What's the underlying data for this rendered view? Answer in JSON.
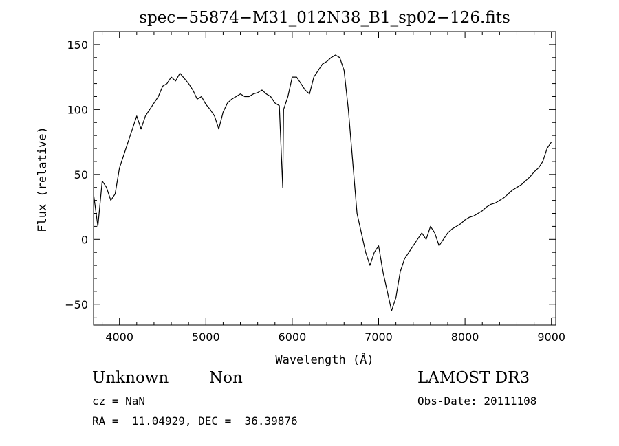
{
  "chart_data": {
    "type": "line",
    "title": "spec−55874−M31_012N38_B1_sp02−126.fits",
    "xlabel": "Wavelength (Å)",
    "ylabel": "Flux (relative)",
    "xlim": [
      3700,
      9050
    ],
    "ylim": [
      -66,
      160
    ],
    "x_ticks": [
      4000,
      5000,
      6000,
      7000,
      8000,
      9000
    ],
    "y_ticks": [
      -50,
      0,
      50,
      100,
      150
    ],
    "y_tick_labels": [
      "−50",
      "0",
      "50",
      "100",
      "150"
    ],
    "grid": false,
    "line_color": "#000000",
    "series": [
      {
        "x": [
          3700,
          3750,
          3800,
          3850,
          3900,
          3950,
          4000,
          4050,
          4100,
          4150,
          4200,
          4250,
          4300,
          4350,
          4400,
          4450,
          4500,
          4550,
          4600,
          4650,
          4700,
          4750,
          4800,
          4850,
          4900,
          4950,
          5000,
          5050,
          5100,
          5150,
          5200,
          5250,
          5300,
          5350,
          5400,
          5450,
          5500,
          5550,
          5600,
          5650,
          5700,
          5750,
          5800,
          5850,
          5890,
          5900,
          5950,
          6000,
          6050,
          6100,
          6150,
          6200,
          6250,
          6300,
          6350,
          6400,
          6450,
          6500,
          6550,
          6600,
          6650,
          6700,
          6750,
          6800,
          6850,
          6900,
          6950,
          7000,
          7050,
          7100,
          7150,
          7200,
          7250,
          7300,
          7350,
          7400,
          7450,
          7500,
          7550,
          7600,
          7650,
          7700,
          7750,
          7800,
          7850,
          7900,
          7950,
          8000,
          8050,
          8100,
          8150,
          8200,
          8250,
          8300,
          8350,
          8400,
          8450,
          8500,
          8550,
          8600,
          8650,
          8700,
          8750,
          8800,
          8850,
          8900,
          8950,
          9000
        ],
        "y": [
          35,
          10,
          45,
          40,
          30,
          35,
          55,
          65,
          75,
          85,
          95,
          85,
          95,
          100,
          105,
          110,
          118,
          120,
          125,
          122,
          128,
          124,
          120,
          115,
          108,
          110,
          104,
          100,
          95,
          85,
          98,
          105,
          108,
          110,
          112,
          110,
          110,
          112,
          113,
          115,
          112,
          110,
          105,
          103,
          40,
          100,
          110,
          125,
          125,
          120,
          115,
          112,
          125,
          130,
          135,
          137,
          140,
          142,
          140,
          130,
          100,
          60,
          20,
          5,
          -10,
          -20,
          -10,
          -5,
          -25,
          -40,
          -55,
          -45,
          -25,
          -15,
          -10,
          -5,
          0,
          5,
          0,
          10,
          5,
          -5,
          0,
          5,
          8,
          10,
          12,
          15,
          17,
          18,
          20,
          22,
          25,
          27,
          28,
          30,
          32,
          35,
          38,
          40,
          42,
          45,
          48,
          52,
          55,
          60,
          70,
          75
        ]
      }
    ]
  },
  "info": {
    "object_class": "Unknown",
    "object_subclass": "Non",
    "survey": "LAMOST DR3",
    "cz": "cz = NaN",
    "obs_date": "Obs-Date: 20111108",
    "coords": "RA =  11.04929, DEC =  36.39876"
  }
}
